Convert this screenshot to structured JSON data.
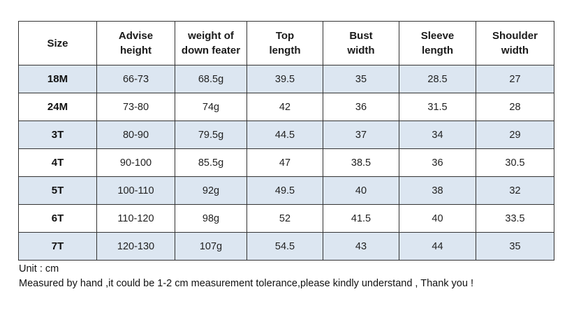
{
  "table": {
    "headers": [
      [
        "Size"
      ],
      [
        "Advise",
        "height"
      ],
      [
        "weight of",
        "down feater"
      ],
      [
        "Top",
        "length"
      ],
      [
        "Bust",
        "width"
      ],
      [
        "Sleeve",
        "length"
      ],
      [
        "Shoulder",
        "width"
      ]
    ],
    "rows": [
      [
        "18M",
        "66-73",
        "68.5g",
        "39.5",
        "35",
        "28.5",
        "27"
      ],
      [
        "24M",
        "73-80",
        "74g",
        "42",
        "36",
        "31.5",
        "28"
      ],
      [
        "3T",
        "80-90",
        "79.5g",
        "44.5",
        "37",
        "34",
        "29"
      ],
      [
        "4T",
        "90-100",
        "85.5g",
        "47",
        "38.5",
        "36",
        "30.5"
      ],
      [
        "5T",
        "100-110",
        "92g",
        "49.5",
        "40",
        "38",
        "32"
      ],
      [
        "6T",
        "110-120",
        "98g",
        "52",
        "41.5",
        "40",
        "33.5"
      ],
      [
        "7T",
        "120-130",
        "107g",
        "54.5",
        "43",
        "44",
        "35"
      ]
    ],
    "shaded_color": "#dce6f1"
  },
  "notes": {
    "unit": "Unit : cm",
    "disclaimer": "Measured by hand ,it could be 1-2 cm measurement tolerance,please kindly understand , Thank you !"
  }
}
